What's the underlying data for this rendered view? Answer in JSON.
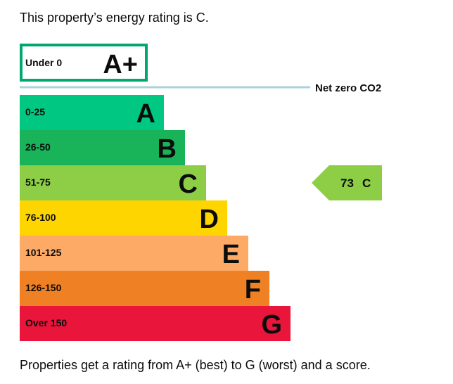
{
  "intro_text": "This property’s energy rating is C.",
  "footer_text": "Properties get a rating from A+ (best) to G (worst) and a score.",
  "chart_data": {
    "type": "bar",
    "top_band": {
      "range": "Under 0",
      "letter": "A+",
      "color": "#00a870"
    },
    "net_zero_label": "Net zero CO2",
    "net_zero_line_color": "#a9d3dc",
    "bands": [
      {
        "range": "0-25",
        "letter": "A",
        "color": "#00c781"
      },
      {
        "range": "26-50",
        "letter": "B",
        "color": "#19b459"
      },
      {
        "range": "51-75",
        "letter": "C",
        "color": "#8dce46"
      },
      {
        "range": "76-100",
        "letter": "D",
        "color": "#ffd500"
      },
      {
        "range": "101-125",
        "letter": "E",
        "color": "#fcaa65"
      },
      {
        "range": "126-150",
        "letter": "F",
        "color": "#ef8023"
      },
      {
        "range": "Over 150",
        "letter": "G",
        "color": "#e9153b"
      }
    ],
    "current": {
      "score": 73,
      "letter": "C",
      "band_index": 2,
      "color": "#8dce46"
    }
  }
}
